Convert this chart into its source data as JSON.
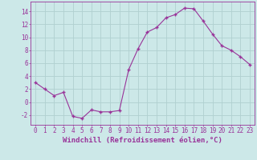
{
  "x": [
    0,
    1,
    2,
    3,
    4,
    5,
    6,
    7,
    8,
    9,
    10,
    11,
    12,
    13,
    14,
    15,
    16,
    17,
    18,
    19,
    20,
    21,
    22,
    23
  ],
  "y": [
    3,
    2,
    1,
    1.5,
    -2.2,
    -2.5,
    -1.2,
    -1.5,
    -1.5,
    -1.3,
    5,
    8.2,
    10.8,
    11.5,
    13,
    13.5,
    14.5,
    14.4,
    12.5,
    10.5,
    8.7,
    8,
    7,
    5.8
  ],
  "line_color": "#993399",
  "marker_color": "#993399",
  "bg_color": "#cce8e8",
  "grid_color": "#b0d0d0",
  "xlabel": "Windchill (Refroidissement éolien,°C)",
  "yticks": [
    -2,
    0,
    2,
    4,
    6,
    8,
    10,
    12,
    14
  ],
  "xticks": [
    0,
    1,
    2,
    3,
    4,
    5,
    6,
    7,
    8,
    9,
    10,
    11,
    12,
    13,
    14,
    15,
    16,
    17,
    18,
    19,
    20,
    21,
    22,
    23
  ],
  "ylim": [
    -3.5,
    15.5
  ],
  "xlim": [
    -0.5,
    23.5
  ],
  "font_color": "#993399",
  "tick_label_size": 5.5,
  "xlabel_size": 6.5
}
